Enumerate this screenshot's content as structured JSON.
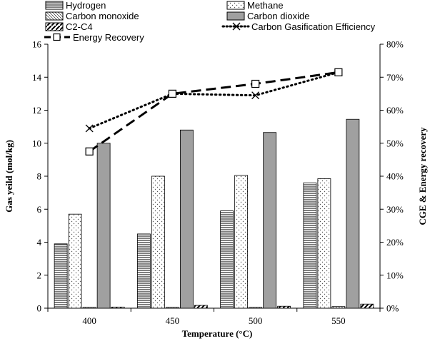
{
  "chart_data": {
    "type": "bar",
    "categories": [
      "400",
      "450",
      "500",
      "550"
    ],
    "xlabel": "Temperature (°C)",
    "ylabel": "Gas yeild (mol/kg)",
    "y2label": "CGE & Energy recovery",
    "ylim": [
      0,
      16
    ],
    "yticks": [
      "0",
      "2",
      "4",
      "6",
      "8",
      "10",
      "12",
      "14",
      "16"
    ],
    "y2lim": [
      0,
      80
    ],
    "y2ticks": [
      "0%",
      "10%",
      "20%",
      "30%",
      "40%",
      "50%",
      "60%",
      "70%",
      "80%"
    ],
    "grid": false,
    "legend_placement": "top",
    "series": [
      {
        "name": "Hydrogen",
        "type": "bar",
        "pattern": "horizontal-lines",
        "values": [
          3.9,
          4.5,
          5.9,
          7.6
        ]
      },
      {
        "name": "Methane",
        "type": "bar",
        "pattern": "dots",
        "values": [
          5.7,
          8.0,
          8.05,
          7.85
        ]
      },
      {
        "name": "Carbon monoxide",
        "type": "bar",
        "pattern": "back-diagonal-lines",
        "values": [
          0.05,
          0.05,
          0.05,
          0.1
        ]
      },
      {
        "name": "Carbon dioxide",
        "type": "bar",
        "pattern": "solid-gray",
        "values": [
          10.0,
          10.8,
          10.65,
          11.45
        ]
      },
      {
        "name": "C2-C4",
        "type": "bar",
        "pattern": "wide-diagonal-lines",
        "values": [
          0.07,
          0.17,
          0.12,
          0.25
        ]
      },
      {
        "name": "Carbon Gasification Efficiency",
        "type": "line",
        "axis": "right",
        "marker": "x",
        "style": "dotted",
        "values": [
          54.5,
          65.0,
          64.5,
          71.5
        ]
      },
      {
        "name": "Energy Recovery",
        "type": "line",
        "axis": "right",
        "marker": "square",
        "style": "dashed",
        "values": [
          47.5,
          65.0,
          68.0,
          71.5
        ]
      }
    ]
  },
  "colors": {
    "dioxide_fill": "#a0a0a0",
    "line": "#000000",
    "dot_fill": "#555555"
  }
}
